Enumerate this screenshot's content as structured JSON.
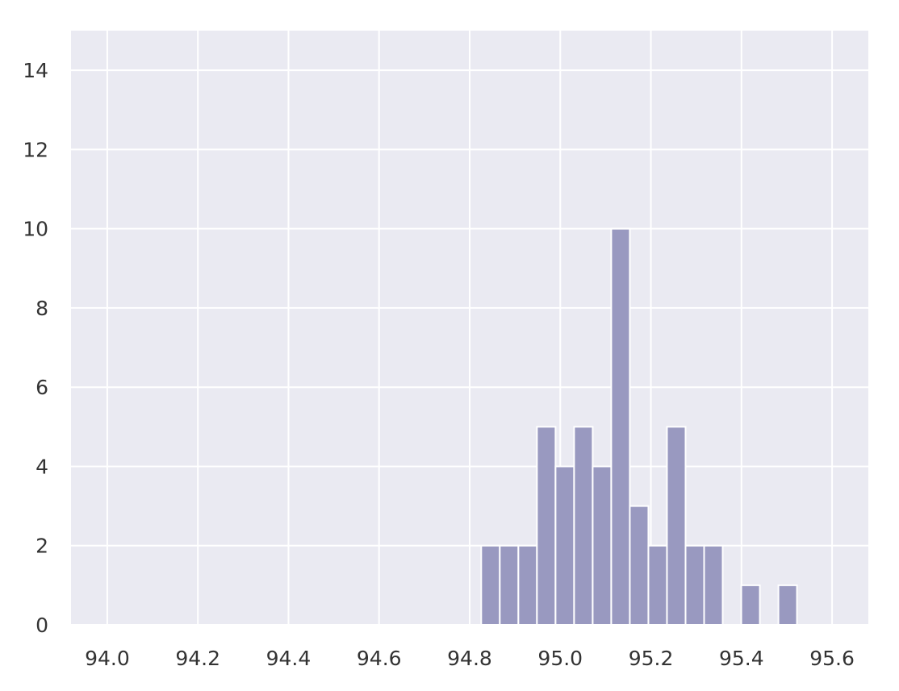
{
  "chart_data": {
    "type": "bar",
    "title": "",
    "xlabel": "",
    "ylabel": "",
    "xlim": [
      93.92,
      95.68
    ],
    "ylim": [
      0,
      15
    ],
    "x_ticks": [
      "94.0",
      "94.2",
      "94.4",
      "94.6",
      "94.8",
      "95.0",
      "95.2",
      "95.4",
      "95.6"
    ],
    "y_ticks": [
      "0",
      "2",
      "4",
      "6",
      "8",
      "10",
      "12",
      "14"
    ],
    "grid": true,
    "bin_width": 0.041,
    "bins": [
      {
        "x": 94.846,
        "count": 2
      },
      {
        "x": 94.887,
        "count": 2
      },
      {
        "x": 94.928,
        "count": 2
      },
      {
        "x": 94.969,
        "count": 5
      },
      {
        "x": 95.01,
        "count": 4
      },
      {
        "x": 95.051,
        "count": 5
      },
      {
        "x": 95.092,
        "count": 4
      },
      {
        "x": 95.133,
        "count": 10
      },
      {
        "x": 95.174,
        "count": 3
      },
      {
        "x": 95.215,
        "count": 2
      },
      {
        "x": 95.256,
        "count": 5
      },
      {
        "x": 95.297,
        "count": 2
      },
      {
        "x": 95.338,
        "count": 2
      },
      {
        "x": 95.42,
        "count": 1
      },
      {
        "x": 95.502,
        "count": 1
      }
    ],
    "colors": {
      "bar": "#9999c0",
      "plot_background": "#eaeaf2",
      "grid": "#ffffff"
    }
  }
}
